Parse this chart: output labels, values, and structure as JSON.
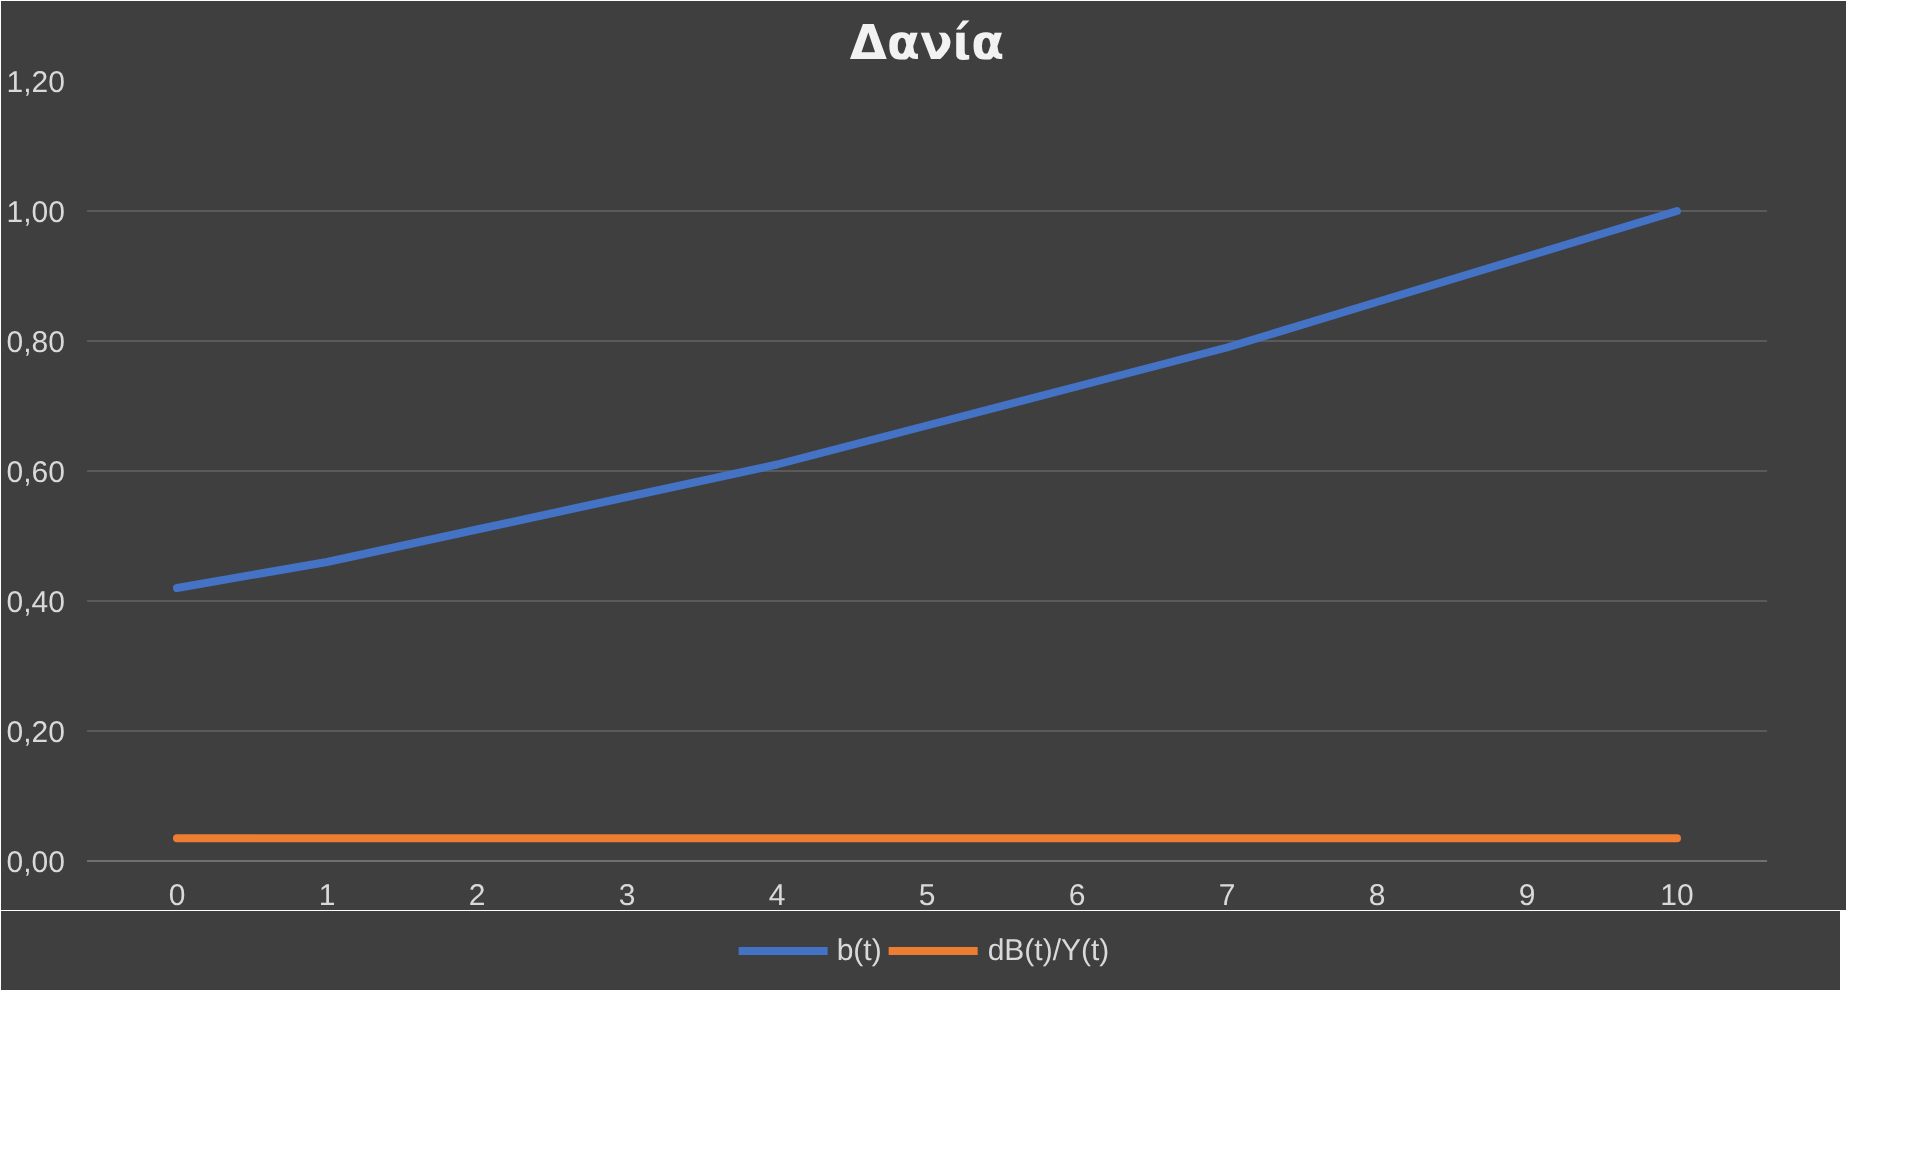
{
  "chart_data": {
    "type": "line",
    "title": "Δανία",
    "categories": [
      "0",
      "1",
      "2",
      "3",
      "4",
      "5",
      "6",
      "7",
      "8",
      "9",
      "10"
    ],
    "series": [
      {
        "name": "b(t)",
        "color": "#4472c4",
        "values": [
          0.42,
          0.46,
          0.51,
          0.56,
          0.61,
          0.67,
          0.73,
          0.79,
          0.86,
          0.93,
          1.0
        ]
      },
      {
        "name": "dB(t)/Y(t)",
        "color": "#ed7d31",
        "values": [
          0.035,
          0.035,
          0.035,
          0.035,
          0.035,
          0.035,
          0.035,
          0.035,
          0.035,
          0.035,
          0.035
        ]
      }
    ],
    "ylim": [
      0,
      1.2
    ],
    "yticks": [
      {
        "value": 0,
        "label": "0,00"
      },
      {
        "value": 0.2,
        "label": "0,20"
      },
      {
        "value": 0.4,
        "label": "0,40"
      },
      {
        "value": 0.6,
        "label": "0,60"
      },
      {
        "value": 0.8,
        "label": "0,80"
      },
      {
        "value": 1.0,
        "label": "1,00"
      },
      {
        "value": 1.2,
        "label": "1,20"
      }
    ],
    "grid": "y",
    "legend": "bottom",
    "marker": "none",
    "line_style": "solid"
  }
}
